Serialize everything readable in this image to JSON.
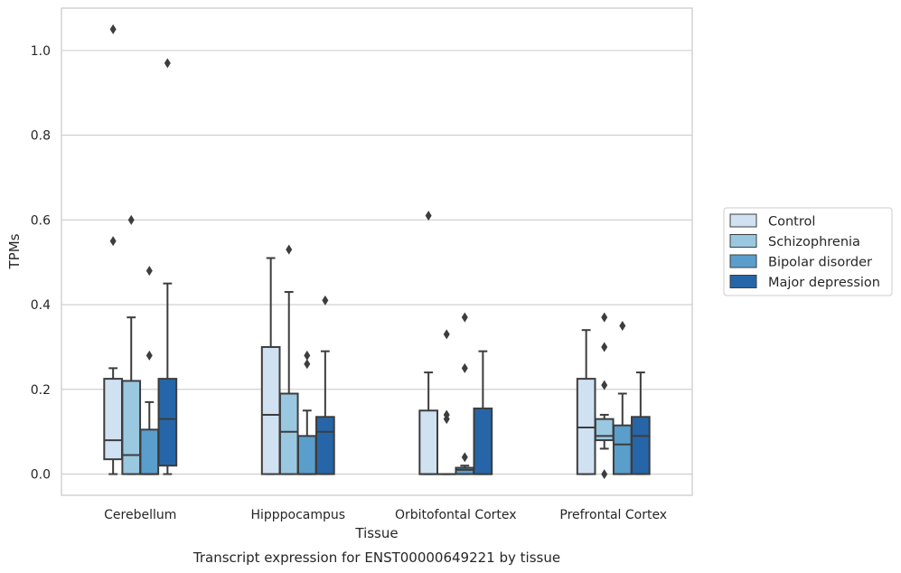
{
  "chart_data": {
    "type": "box",
    "title": "",
    "caption": "Transcript expression for ENST00000649221 by tissue",
    "xlabel": "Tissue",
    "ylabel": "TPMs",
    "ylim": [
      -0.05,
      1.1
    ],
    "yticks": [
      0.0,
      0.2,
      0.4,
      0.6,
      0.8,
      1.0
    ],
    "ytick_labels": [
      "0.0",
      "0.2",
      "0.4",
      "0.6",
      "0.8",
      "1.0"
    ],
    "grid": "horizontal",
    "legend_position": "right",
    "categories": [
      "Cerebellum",
      "Hipppocampus",
      "Orbitofontal Cortex",
      "Prefrontal Cortex"
    ],
    "series": [
      {
        "name": "Control",
        "color": "#d0e1f2",
        "boxes": [
          {
            "whislo": 0.0,
            "q1": 0.035,
            "med": 0.08,
            "q3": 0.225,
            "whishi": 0.25,
            "fliers": [
              0.55,
              1.05
            ]
          },
          {
            "whislo": 0.0,
            "q1": 0.0,
            "med": 0.14,
            "q3": 0.3,
            "whishi": 0.51,
            "fliers": []
          },
          {
            "whislo": 0.0,
            "q1": 0.0,
            "med": 0.0,
            "q3": 0.15,
            "whishi": 0.24,
            "fliers": [
              0.61
            ]
          },
          {
            "whislo": 0.0,
            "q1": 0.0,
            "med": 0.11,
            "q3": 0.225,
            "whishi": 0.34,
            "fliers": []
          }
        ]
      },
      {
        "name": "Schizophrenia",
        "color": "#9ac8e0",
        "boxes": [
          {
            "whislo": 0.0,
            "q1": 0.0,
            "med": 0.045,
            "q3": 0.22,
            "whishi": 0.37,
            "fliers": [
              0.6
            ]
          },
          {
            "whislo": 0.0,
            "q1": 0.0,
            "med": 0.1,
            "q3": 0.19,
            "whishi": 0.43,
            "fliers": [
              0.53
            ]
          },
          {
            "whislo": 0.0,
            "q1": 0.0,
            "med": 0.0,
            "q3": 0.0,
            "whishi": 0.0,
            "fliers": [
              0.13,
              0.14,
              0.33
            ]
          },
          {
            "whislo": 0.06,
            "q1": 0.08,
            "med": 0.09,
            "q3": 0.13,
            "whishi": 0.14,
            "fliers": [
              0.0,
              0.21,
              0.3,
              0.37
            ]
          }
        ]
      },
      {
        "name": "Bipolar disorder",
        "color": "#5a9ecc",
        "boxes": [
          {
            "whislo": 0.0,
            "q1": 0.0,
            "med": 0.0,
            "q3": 0.105,
            "whishi": 0.17,
            "fliers": [
              0.28,
              0.48
            ]
          },
          {
            "whislo": 0.0,
            "q1": 0.0,
            "med": 0.0,
            "q3": 0.09,
            "whishi": 0.15,
            "fliers": [
              0.26,
              0.28
            ]
          },
          {
            "whislo": 0.0,
            "q1": 0.0,
            "med": 0.01,
            "q3": 0.015,
            "whishi": 0.02,
            "fliers": [
              0.04,
              0.25,
              0.37
            ]
          },
          {
            "whislo": 0.0,
            "q1": 0.0,
            "med": 0.07,
            "q3": 0.115,
            "whishi": 0.19,
            "fliers": [
              0.35
            ]
          }
        ]
      },
      {
        "name": "Major depression",
        "color": "#2666a8",
        "boxes": [
          {
            "whislo": 0.0,
            "q1": 0.02,
            "med": 0.13,
            "q3": 0.225,
            "whishi": 0.45,
            "fliers": [
              0.97
            ]
          },
          {
            "whislo": 0.0,
            "q1": 0.0,
            "med": 0.1,
            "q3": 0.135,
            "whishi": 0.29,
            "fliers": [
              0.41
            ]
          },
          {
            "whislo": 0.0,
            "q1": 0.0,
            "med": 0.0,
            "q3": 0.155,
            "whishi": 0.29,
            "fliers": []
          },
          {
            "whislo": 0.0,
            "q1": 0.0,
            "med": 0.09,
            "q3": 0.135,
            "whishi": 0.24,
            "fliers": []
          }
        ]
      }
    ]
  }
}
